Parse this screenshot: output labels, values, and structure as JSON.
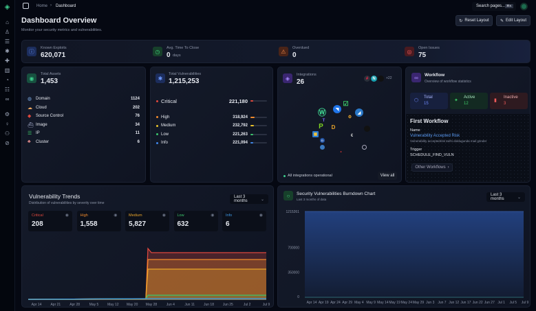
{
  "breadcrumb": {
    "home": "Home",
    "current": "Dashboard"
  },
  "search": {
    "placeholder": "Search pages...",
    "shortcut": "⌘K"
  },
  "header": {
    "title": "Dashboard Overview",
    "subtitle": "Monitor your security metrics and vulnerabilities.",
    "reset_label": "Reset Layout",
    "edit_label": "Edit Layout"
  },
  "stats": [
    {
      "label": "Known Exploits",
      "value": "620,071",
      "unit": ""
    },
    {
      "label": "Avg. Time To Close",
      "value": "0",
      "unit": "days"
    },
    {
      "label": "Overdued",
      "value": "0",
      "unit": ""
    },
    {
      "label": "Open Issues",
      "value": "75",
      "unit": ""
    }
  ],
  "assets": {
    "label": "Total Assets",
    "value": "1,453",
    "items": [
      {
        "name": "Domain",
        "count": "1124"
      },
      {
        "name": "Cloud",
        "count": "202"
      },
      {
        "name": "Source Control",
        "count": "76"
      },
      {
        "name": "Image",
        "count": "34"
      },
      {
        "name": "IP",
        "count": "11"
      },
      {
        "name": "Cluster",
        "count": "6"
      }
    ]
  },
  "vulns": {
    "label": "Total Vulnerabilities",
    "value": "1,215,253",
    "items": [
      {
        "name": "Critical",
        "count": "221,180",
        "color": "#e0483e",
        "fill": 0.18
      },
      {
        "name": "High",
        "count": "318,924",
        "color": "#f08a2c",
        "fill": 0.26
      },
      {
        "name": "Medium",
        "count": "232,792",
        "color": "#e8c22b",
        "fill": 0.19
      },
      {
        "name": "Low",
        "count": "221,263",
        "color": "#3cc56c",
        "fill": 0.18
      },
      {
        "name": "Info",
        "count": "221,094",
        "color": "#3f86e8",
        "fill": 0.18
      }
    ]
  },
  "integrations": {
    "label": "Integrations",
    "value": "26",
    "more": "+22",
    "status": "All integrations operational",
    "view_all": "View all"
  },
  "workflow": {
    "title": "Workflow",
    "subtitle": "Overview of workflow statistics",
    "total_label": "Total",
    "total": "15",
    "active_label": "Active",
    "active": "12",
    "inactive_label": "Inactive",
    "inactive": "3",
    "first_title": "First Workflow",
    "name_label": "Name",
    "name": "Vulnerability Accepted Risk",
    "desc": "Vulnerability acceptedrisk tarihi doldugunda mail gönder",
    "trigger_label": "Trigger",
    "trigger": "SCHEDULE_FIND_VULN",
    "other": "Other Workflows"
  },
  "trends": {
    "title": "Vulnerability Trends",
    "subtitle": "Distribution of vulnerabilities by severity over time",
    "range": "Last 3 months",
    "severities": [
      {
        "name": "Critical",
        "value": "208",
        "color": "#e0483e"
      },
      {
        "name": "High",
        "value": "1,558",
        "color": "#f08a2c"
      },
      {
        "name": "Medium",
        "value": "5,827",
        "color": "#e8a42b"
      },
      {
        "name": "Low",
        "value": "632",
        "color": "#3cc56c"
      },
      {
        "name": "Info",
        "value": "6",
        "color": "#3f9ae8"
      }
    ]
  },
  "burndown": {
    "title": "Security Vulnerabilities Burndown Chart",
    "subtitle": "Last 3 months of data",
    "range": "Last 3 months"
  },
  "chart_data": [
    {
      "type": "area",
      "title": "Vulnerability Trends",
      "x": [
        "Apr 14",
        "Apr 21",
        "Apr 28",
        "May 5",
        "May 12",
        "May 20",
        "May 28",
        "Jun 4",
        "Jun 11",
        "Jun 18",
        "Jun 25",
        "Jul 2",
        "Jul 9"
      ],
      "series": [
        {
          "name": "Critical",
          "color": "#e0483e"
        },
        {
          "name": "High",
          "color": "#f08a2c"
        },
        {
          "name": "Medium",
          "color": "#e8a42b"
        },
        {
          "name": "Low",
          "color": "#3cc56c"
        },
        {
          "name": "Info",
          "color": "#3f9ae8"
        }
      ],
      "note": "stacked totals near zero before May 28, then jump to ~8,200 and flat"
    },
    {
      "type": "area",
      "title": "Security Vulnerabilities Burndown Chart",
      "x": [
        "Apr 14",
        "Apr 19",
        "Apr 24",
        "Apr 29",
        "May 4",
        "May 9",
        "May 14",
        "May 19",
        "May 24",
        "May 29",
        "Jun 3",
        "Jun 7",
        "Jun 12",
        "Jun 17",
        "Jun 22",
        "Jun 27",
        "Jul 1",
        "Jul 5",
        "Jul 9"
      ],
      "yticks": [
        "0",
        "350000",
        "700000",
        "1215261"
      ],
      "ylim": [
        0,
        1215261
      ],
      "values": [
        1215261,
        1215261,
        1215261,
        1215261,
        1215261,
        1215261,
        1215261,
        1215261,
        1215261,
        1215261,
        1215261,
        1215261,
        1215261,
        1215261,
        1215261,
        1215261,
        1215261,
        1215261,
        1215261
      ]
    }
  ]
}
